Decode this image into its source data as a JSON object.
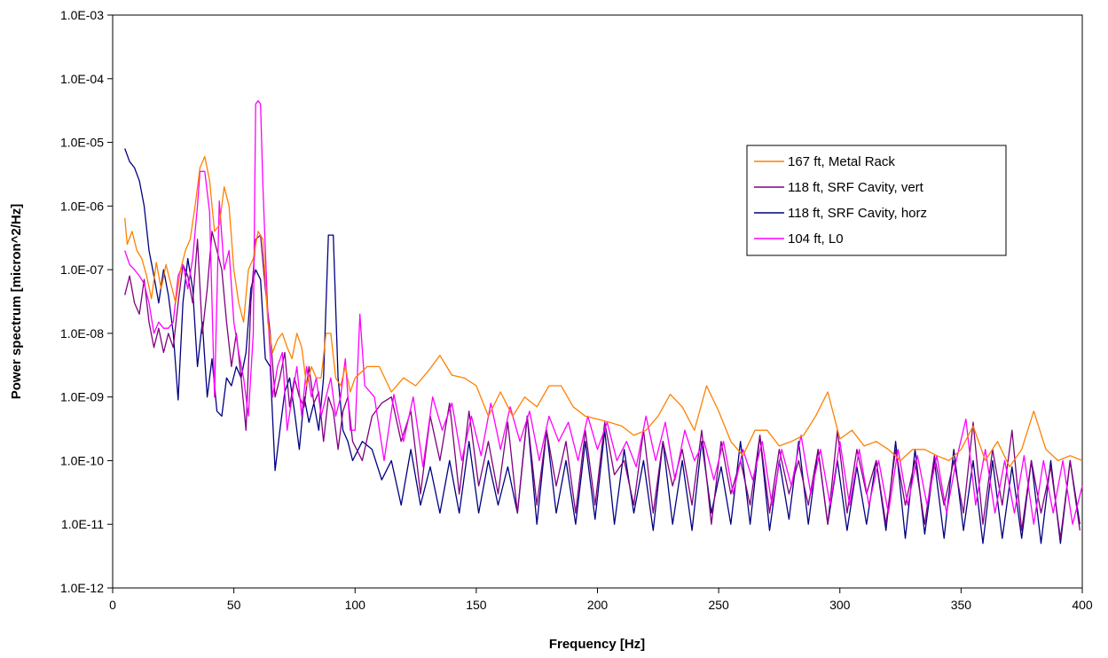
{
  "chart_data": {
    "type": "line",
    "title": "",
    "xlabel": "Frequency [Hz]",
    "ylabel": "Power spectrum [micron^2/Hz]",
    "xlim": [
      0,
      400
    ],
    "ylim": [
      1e-12,
      0.001
    ],
    "yscale": "log",
    "grid": false,
    "legend_position": "right",
    "x_ticks": [
      0,
      50,
      100,
      150,
      200,
      250,
      300,
      350,
      400
    ],
    "x_tick_labels": [
      "0",
      "50",
      "100",
      "150",
      "200",
      "250",
      "300",
      "350",
      "400"
    ],
    "y_ticks": [
      1e-12,
      1e-11,
      1e-10,
      1e-09,
      1e-08,
      1e-07,
      1e-06,
      1e-05,
      0.0001,
      0.001
    ],
    "y_tick_labels": [
      "1.0E-12",
      "1.0E-11",
      "1.0E-10",
      "1.0E-09",
      "1.0E-08",
      "1.0E-07",
      "1.0E-06",
      "1.0E-05",
      "1.0E-04",
      "1.0E-03"
    ],
    "series": [
      {
        "name": "167 ft, Metal Rack",
        "color": "#ff8000",
        "x": [
          5,
          6,
          8,
          10,
          12,
          14,
          16,
          18,
          20,
          22,
          24,
          26,
          28,
          30,
          32,
          34,
          36,
          38,
          40,
          42,
          44,
          46,
          48,
          50,
          52,
          54,
          56,
          58,
          60,
          62,
          64,
          66,
          68,
          70,
          72,
          74,
          76,
          78,
          80,
          82,
          84,
          86,
          88,
          90,
          92,
          94,
          96,
          98,
          100,
          105,
          110,
          115,
          120,
          125,
          130,
          135,
          140,
          145,
          150,
          155,
          160,
          165,
          170,
          175,
          180,
          185,
          190,
          195,
          200,
          205,
          210,
          215,
          220,
          225,
          230,
          235,
          240,
          245,
          250,
          255,
          260,
          265,
          270,
          275,
          280,
          285,
          290,
          295,
          300,
          305,
          310,
          315,
          320,
          325,
          330,
          335,
          340,
          345,
          350,
          355,
          360,
          365,
          370,
          375,
          380,
          385,
          390,
          395,
          400
        ],
        "y": [
          6.5e-07,
          2.5e-07,
          4e-07,
          2e-07,
          1.5e-07,
          8e-08,
          3.5e-08,
          1.3e-07,
          5e-08,
          1.2e-07,
          6e-08,
          3e-08,
          1e-07,
          2e-07,
          3e-07,
          1e-06,
          4e-06,
          6e-06,
          2.5e-06,
          4e-07,
          5e-07,
          2e-06,
          1e-06,
          1e-07,
          3e-08,
          1.5e-08,
          1e-07,
          1.5e-07,
          4e-07,
          3e-07,
          1.5e-08,
          5e-09,
          8e-09,
          1e-08,
          6e-09,
          4e-09,
          1e-08,
          6e-09,
          1.5e-09,
          3e-09,
          2e-09,
          2e-09,
          1e-08,
          1e-08,
          2e-09,
          1.5e-09,
          3e-09,
          1.2e-09,
          2e-09,
          3e-09,
          3e-09,
          1.2e-09,
          2e-09,
          1.5e-09,
          2.5e-09,
          4.5e-09,
          2.2e-09,
          2e-09,
          1.5e-09,
          5e-10,
          1.2e-09,
          5e-10,
          1e-09,
          7e-10,
          1.5e-09,
          1.5e-09,
          7e-10,
          5e-10,
          4.5e-10,
          4e-10,
          3.5e-10,
          2.5e-10,
          3e-10,
          5e-10,
          1.1e-09,
          7e-10,
          3e-10,
          1.5e-09,
          6e-10,
          2e-10,
          1.2e-10,
          3e-10,
          3e-10,
          1.7e-10,
          2e-10,
          2.5e-10,
          5e-10,
          1.2e-09,
          2.2e-10,
          3e-10,
          1.7e-10,
          2e-10,
          1.5e-10,
          1e-10,
          1.5e-10,
          1.5e-10,
          1.2e-10,
          1e-10,
          1.5e-10,
          3.5e-10,
          1e-10,
          2e-10,
          8e-11,
          1.5e-10,
          6e-10,
          1.5e-10,
          1e-10,
          1.2e-10,
          1e-10
        ]
      },
      {
        "name": "118 ft, SRF Cavity, vert",
        "color": "#800080",
        "x": [
          5,
          7,
          9,
          11,
          13,
          15,
          17,
          19,
          21,
          23,
          25,
          27,
          29,
          31,
          33,
          35,
          37,
          39,
          41,
          43,
          45,
          47,
          49,
          51,
          53,
          55,
          57,
          59,
          61,
          63,
          65,
          67,
          69,
          71,
          73,
          75,
          77,
          79,
          81,
          83,
          85,
          87,
          89,
          91,
          93,
          95,
          97,
          99,
          103,
          107,
          111,
          115,
          119,
          123,
          127,
          131,
          135,
          139,
          143,
          147,
          151,
          155,
          159,
          163,
          167,
          171,
          175,
          179,
          183,
          187,
          191,
          195,
          199,
          203,
          207,
          211,
          215,
          219,
          223,
          227,
          231,
          235,
          239,
          243,
          247,
          251,
          255,
          259,
          263,
          267,
          271,
          275,
          279,
          283,
          287,
          291,
          295,
          299,
          303,
          307,
          311,
          315,
          319,
          323,
          327,
          331,
          335,
          339,
          343,
          347,
          351,
          355,
          359,
          363,
          367,
          371,
          375,
          379,
          383,
          387,
          391,
          395,
          399
        ],
        "y": [
          4e-08,
          8e-08,
          3e-08,
          2e-08,
          7e-08,
          1.5e-08,
          6e-09,
          1.2e-08,
          5e-09,
          1e-08,
          6e-09,
          3e-08,
          1.2e-07,
          8e-08,
          3e-08,
          3e-07,
          1e-08,
          5e-08,
          4e-07,
          2e-07,
          1e-07,
          1.5e-08,
          3e-09,
          1e-08,
          2e-09,
          3e-10,
          3e-08,
          3e-07,
          3.5e-07,
          5e-08,
          1e-08,
          1e-09,
          2e-09,
          5e-09,
          7e-10,
          2e-09,
          1e-09,
          7e-10,
          3e-09,
          8e-10,
          1.2e-09,
          2e-10,
          1e-09,
          6e-10,
          1.5e-10,
          6e-10,
          1e-09,
          2e-10,
          1e-10,
          5e-10,
          8e-10,
          1e-09,
          2e-10,
          6e-10,
          3e-11,
          5e-10,
          1e-10,
          8e-10,
          3e-11,
          6e-10,
          4e-11,
          2e-10,
          3e-11,
          4e-10,
          1.5e-11,
          5e-10,
          2e-11,
          3e-10,
          4e-11,
          2e-10,
          1.5e-11,
          3e-10,
          2e-11,
          4e-10,
          6e-11,
          1e-10,
          2e-11,
          3e-10,
          1.5e-11,
          2e-10,
          4e-11,
          1.5e-10,
          2e-11,
          3e-10,
          1e-11,
          2e-10,
          3e-11,
          1e-10,
          2e-11,
          2.5e-10,
          1.5e-11,
          1.5e-10,
          3e-11,
          1e-10,
          2e-11,
          1.5e-10,
          1e-11,
          3e-10,
          1.5e-11,
          1.5e-10,
          3e-11,
          1e-10,
          1e-11,
          1.5e-10,
          2e-11,
          1e-10,
          1e-11,
          1.2e-10,
          2e-11,
          1e-10,
          1.5e-11,
          4e-10,
          1e-11,
          1.5e-10,
          2e-11,
          3e-10,
          8e-12,
          1e-10,
          1.5e-11,
          8e-11,
          6e-12,
          1e-10,
          8e-12
        ]
      },
      {
        "name": "118 ft, SRF Cavity, horz",
        "color": "#000080",
        "x": [
          5,
          7,
          9,
          11,
          13,
          15,
          17,
          19,
          21,
          23,
          25,
          27,
          29,
          31,
          33,
          35,
          37,
          39,
          41,
          43,
          45,
          47,
          49,
          51,
          53,
          55,
          57,
          59,
          61,
          63,
          65,
          67,
          69,
          71,
          73,
          75,
          77,
          79,
          81,
          83,
          85,
          87,
          89,
          91,
          93,
          95,
          97,
          99,
          103,
          107,
          111,
          115,
          119,
          123,
          127,
          131,
          135,
          139,
          143,
          147,
          151,
          155,
          159,
          163,
          167,
          171,
          175,
          179,
          183,
          187,
          191,
          195,
          199,
          203,
          207,
          211,
          215,
          219,
          223,
          227,
          231,
          235,
          239,
          243,
          247,
          251,
          255,
          259,
          263,
          267,
          271,
          275,
          279,
          283,
          287,
          291,
          295,
          299,
          303,
          307,
          311,
          315,
          319,
          323,
          327,
          331,
          335,
          339,
          343,
          347,
          351,
          355,
          359,
          363,
          367,
          371,
          375,
          379,
          383,
          387,
          391,
          395,
          399
        ],
        "y": [
          8e-06,
          5e-06,
          4e-06,
          2.5e-06,
          1e-06,
          2e-07,
          8e-08,
          3e-08,
          1e-07,
          4e-08,
          1e-08,
          9e-10,
          3e-08,
          1.5e-07,
          5e-08,
          3e-09,
          1.5e-08,
          1e-09,
          4e-09,
          6e-10,
          5e-10,
          2e-09,
          1.5e-09,
          3e-09,
          2e-09,
          5e-09,
          5e-08,
          1e-07,
          7e-08,
          4e-09,
          3e-09,
          7e-11,
          3e-10,
          1.2e-09,
          2e-09,
          6e-10,
          1.5e-10,
          1e-09,
          4e-10,
          8e-10,
          3e-10,
          2e-09,
          3.5e-07,
          3.5e-07,
          2e-09,
          3e-10,
          2e-10,
          1e-10,
          2e-10,
          1.5e-10,
          5e-11,
          1e-10,
          2e-11,
          1.5e-10,
          2e-11,
          8e-11,
          1.5e-11,
          1e-10,
          1.5e-11,
          2e-10,
          1.5e-11,
          1e-10,
          2e-11,
          8e-11,
          1.5e-11,
          5e-10,
          1e-11,
          3e-10,
          1.5e-11,
          1e-10,
          1e-11,
          2e-10,
          1.2e-11,
          3e-10,
          1e-11,
          1.5e-10,
          1.5e-11,
          1e-10,
          8e-12,
          2e-10,
          1e-11,
          1e-10,
          8e-12,
          2e-10,
          1.5e-11,
          8e-11,
          1e-11,
          2e-10,
          1e-11,
          2.5e-10,
          8e-12,
          1e-10,
          1.2e-11,
          2e-10,
          1e-11,
          1.5e-10,
          1e-11,
          1e-10,
          8e-12,
          8e-11,
          1e-11,
          1e-10,
          8e-12,
          2e-10,
          6e-12,
          1.5e-10,
          7e-12,
          1e-10,
          6e-12,
          1.5e-10,
          8e-12,
          1e-10,
          5e-12,
          1e-10,
          6e-12,
          8e-11,
          6e-12,
          1e-10,
          5e-12,
          1e-10,
          5e-12,
          1e-10,
          1e-11
        ]
      },
      {
        "name": "104  ft,  L0",
        "color": "#ff00ff",
        "x": [
          5,
          7,
          9,
          11,
          13,
          15,
          17,
          19,
          21,
          23,
          25,
          27,
          29,
          31,
          33,
          35,
          36,
          38,
          40,
          42,
          44,
          46,
          48,
          50,
          52,
          54,
          56,
          58,
          59,
          60,
          61,
          62,
          64,
          66,
          68,
          70,
          72,
          74,
          76,
          78,
          80,
          82,
          84,
          86,
          88,
          90,
          92,
          94,
          96,
          98,
          100,
          102,
          104,
          108,
          112,
          116,
          120,
          124,
          128,
          132,
          136,
          140,
          144,
          148,
          152,
          156,
          160,
          164,
          168,
          172,
          176,
          180,
          184,
          188,
          192,
          196,
          200,
          204,
          208,
          212,
          216,
          220,
          224,
          228,
          232,
          236,
          240,
          244,
          248,
          252,
          256,
          260,
          264,
          268,
          272,
          276,
          280,
          284,
          288,
          292,
          296,
          300,
          304,
          308,
          312,
          316,
          320,
          324,
          328,
          332,
          336,
          340,
          344,
          348,
          352,
          356,
          360,
          364,
          368,
          372,
          376,
          380,
          384,
          388,
          392,
          396,
          400
        ],
        "y": [
          2e-07,
          1.2e-07,
          1e-07,
          8e-08,
          6e-08,
          3e-08,
          1e-08,
          1.5e-08,
          1.2e-08,
          1.2e-08,
          1.5e-08,
          8e-08,
          1.2e-07,
          5e-08,
          1.5e-07,
          1e-06,
          3.5e-06,
          3.5e-06,
          8e-07,
          1e-09,
          1.2e-06,
          1e-07,
          2e-07,
          1.5e-08,
          5e-09,
          2e-09,
          5e-10,
          1e-08,
          4e-05,
          4.5e-05,
          4e-05,
          2e-06,
          2e-08,
          1e-09,
          3e-09,
          5e-09,
          3e-10,
          1e-09,
          3e-09,
          5e-10,
          3e-09,
          1e-09,
          2e-09,
          5e-10,
          1e-09,
          2e-09,
          5e-10,
          1e-09,
          4e-09,
          3e-10,
          3e-10,
          2e-08,
          1.5e-09,
          1e-09,
          1e-10,
          1.1e-09,
          2e-10,
          1e-09,
          8e-11,
          1e-09,
          3e-10,
          8e-10,
          1e-10,
          5e-10,
          1.2e-10,
          8e-10,
          1.5e-10,
          7e-10,
          2e-10,
          6e-10,
          1e-10,
          5e-10,
          2e-10,
          4e-10,
          1e-10,
          5e-10,
          1.5e-10,
          4e-10,
          1e-10,
          2e-10,
          8e-11,
          5e-10,
          1e-10,
          4e-10,
          5e-11,
          3e-10,
          1e-10,
          2e-10,
          5e-11,
          2e-10,
          3e-11,
          1.5e-10,
          5e-11,
          2e-10,
          2e-11,
          1.5e-10,
          4e-11,
          2.5e-10,
          3e-11,
          1.5e-10,
          2e-11,
          2e-10,
          2e-11,
          1.5e-10,
          2e-11,
          1e-10,
          1.5e-11,
          1.5e-10,
          2e-11,
          1.2e-10,
          2e-11,
          1.2e-10,
          1.5e-11,
          1e-10,
          4.5e-10,
          2e-11,
          1.5e-10,
          1.5e-11,
          1e-10,
          1.5e-11,
          1.2e-10,
          1e-11,
          1e-10,
          1.5e-11,
          1e-10,
          1e-11,
          4e-11
        ]
      }
    ]
  }
}
